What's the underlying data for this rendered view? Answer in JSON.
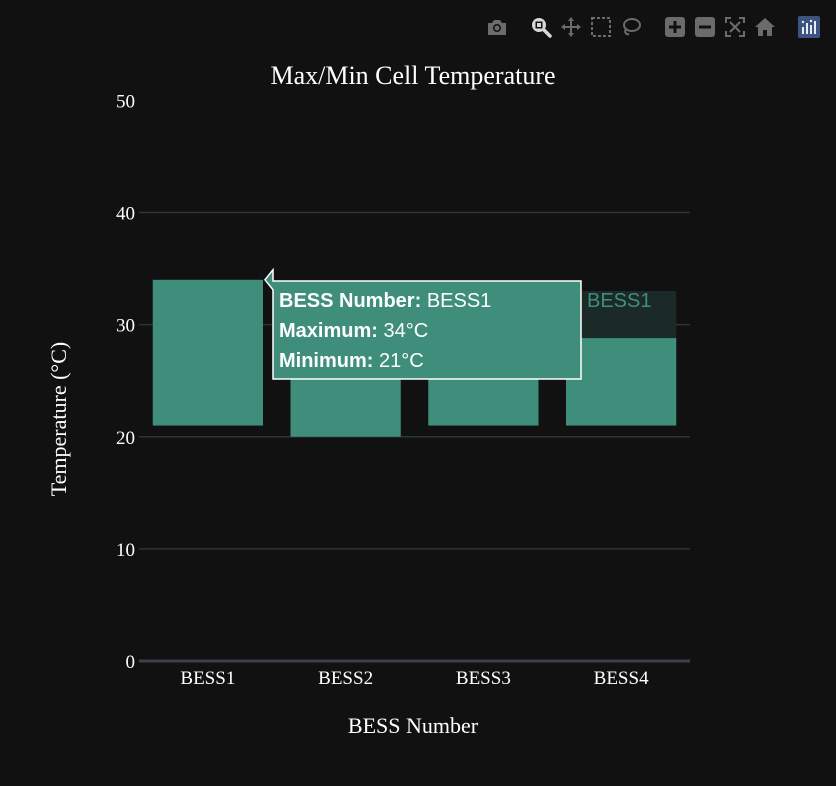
{
  "toolbar": {
    "buttons": [
      {
        "name": "camera-icon",
        "title": "Download plot as a png"
      },
      {
        "name": "zoom-icon",
        "title": "Zoom",
        "active": true
      },
      {
        "name": "pan-icon",
        "title": "Pan"
      },
      {
        "name": "box-select-icon",
        "title": "Box Select"
      },
      {
        "name": "lasso-select-icon",
        "title": "Lasso Select"
      },
      {
        "name": "zoom-in-icon",
        "title": "Zoom in"
      },
      {
        "name": "zoom-out-icon",
        "title": "Zoom out"
      },
      {
        "name": "autoscale-icon",
        "title": "Autoscale"
      },
      {
        "name": "reset-axes-icon",
        "title": "Reset axes"
      },
      {
        "name": "plotly-logo-icon",
        "title": "Produced with Plotly"
      }
    ]
  },
  "chart_data": {
    "type": "bar",
    "title": "Max/Min Cell Temperature",
    "xlabel": "BESS Number",
    "ylabel": "Temperature (°C)",
    "categories": [
      "BESS1",
      "BESS2",
      "BESS3",
      "BESS4"
    ],
    "series": [
      {
        "name": "BESS1",
        "base": [
          21,
          20,
          21,
          21
        ],
        "values": [
          34,
          33,
          33,
          33
        ],
        "color": "#3f8e7c"
      }
    ],
    "y_ticks": [
      0,
      10,
      20,
      30,
      40,
      50
    ],
    "ylim": [
      0,
      52
    ],
    "grid": true,
    "highlighted_category": "BESS1",
    "tooltip": {
      "lines": [
        {
          "label": "BESS Number: ",
          "value": " BESS1"
        },
        {
          "label": "Maximum: ",
          "value": " 34°C"
        },
        {
          "label": "Minimum: ",
          "value": " 21°C"
        }
      ],
      "series_label": "BESS1"
    },
    "colors": {
      "background": "#111111",
      "bar": "#3f8e7c",
      "bar_dimmed": "#1c2a27",
      "grid": "#2e323a",
      "zeroline": "#3c3f4c"
    }
  }
}
